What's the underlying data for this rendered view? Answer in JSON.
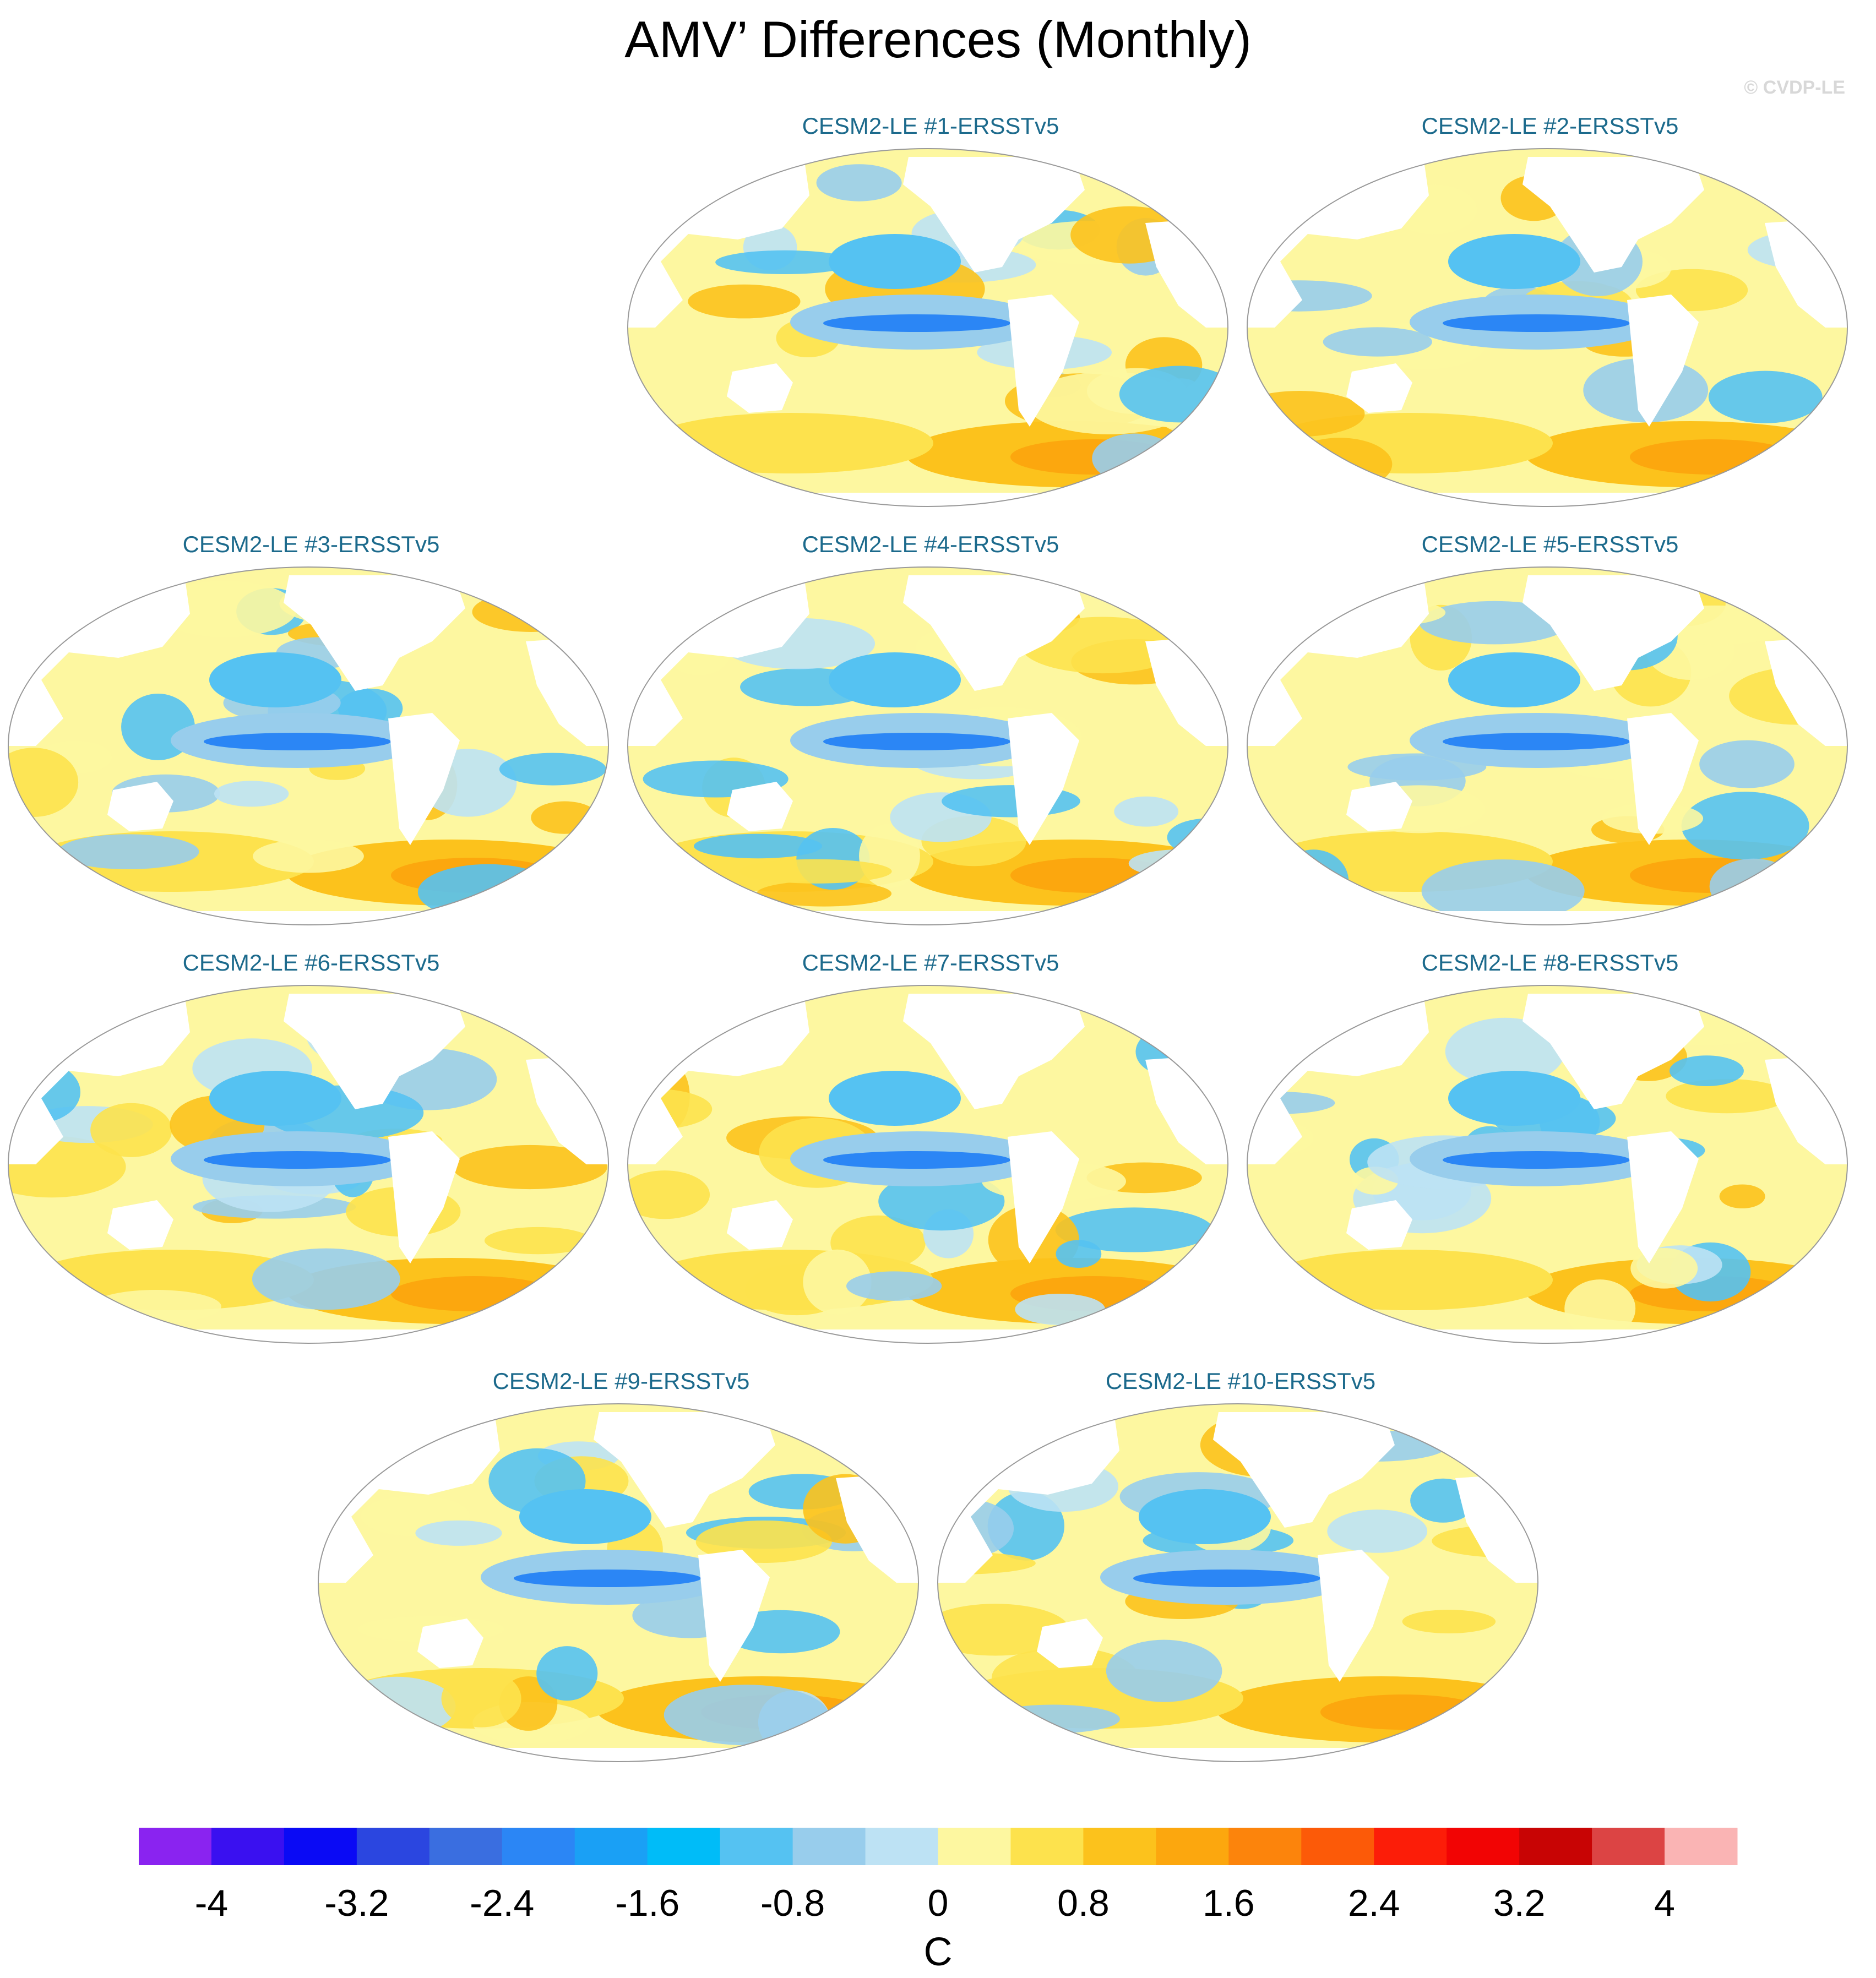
{
  "title": "AMV’ Differences (Monthly)",
  "watermark": "© CVDP-LE",
  "panels": [
    {
      "title": "CESM2-LE #1-ERSSTv5"
    },
    {
      "title": "CESM2-LE #2-ERSSTv5"
    },
    {
      "title": "CESM2-LE #3-ERSSTv5"
    },
    {
      "title": "CESM2-LE #4-ERSSTv5"
    },
    {
      "title": "CESM2-LE #5-ERSSTv5"
    },
    {
      "title": "CESM2-LE #6-ERSSTv5"
    },
    {
      "title": "CESM2-LE #7-ERSSTv5"
    },
    {
      "title": "CESM2-LE #8-ERSSTv5"
    },
    {
      "title": "CESM2-LE #9-ERSSTv5"
    },
    {
      "title": "CESM2-LE #10-ERSSTv5"
    }
  ],
  "colorbar": {
    "units": "C",
    "tick_labels": [
      "-4",
      "-3.2",
      "-2.4",
      "-1.6",
      "-0.8",
      "0",
      "0.8",
      "1.6",
      "2.4",
      "3.2",
      "4"
    ],
    "colors": [
      "#8a23f0",
      "#3a10f0",
      "#0a0af5",
      "#2b46e0",
      "#3a6ee0",
      "#2b86f5",
      "#1aa0f5",
      "#00bcf8",
      "#55c2f2",
      "#98cdec",
      "#bde2f4",
      "#fdf7a0",
      "#fde24d",
      "#fcc21c",
      "#fca70e",
      "#fc840c",
      "#fc5a08",
      "#fc1d08",
      "#f20404",
      "#c80404",
      "#dc4444",
      "#fab4b4"
    ]
  },
  "chart_data": {
    "type": "map",
    "variable": "AMV’ Differences (Monthly)",
    "units": "C",
    "projection": "Robinson (Pacific-centered)",
    "levels": [
      -4.4,
      -4,
      -3.6,
      -3.2,
      -2.8,
      -2.4,
      -2,
      -1.6,
      -1.2,
      -0.8,
      -0.4,
      0,
      0.4,
      0.8,
      1.2,
      1.6,
      2,
      2.4,
      2.8,
      3.2,
      3.6,
      4,
      4.4
    ],
    "panels": [
      "CESM2-LE #1-ERSSTv5",
      "CESM2-LE #2-ERSSTv5",
      "CESM2-LE #3-ERSSTv5",
      "CESM2-LE #4-ERSSTv5",
      "CESM2-LE #5-ERSSTv5",
      "CESM2-LE #6-ERSSTv5",
      "CESM2-LE #7-ERSSTv5",
      "CESM2-LE #8-ERSSTv5",
      "CESM2-LE #9-ERSSTv5",
      "CESM2-LE #10-ERSSTv5"
    ]
  }
}
